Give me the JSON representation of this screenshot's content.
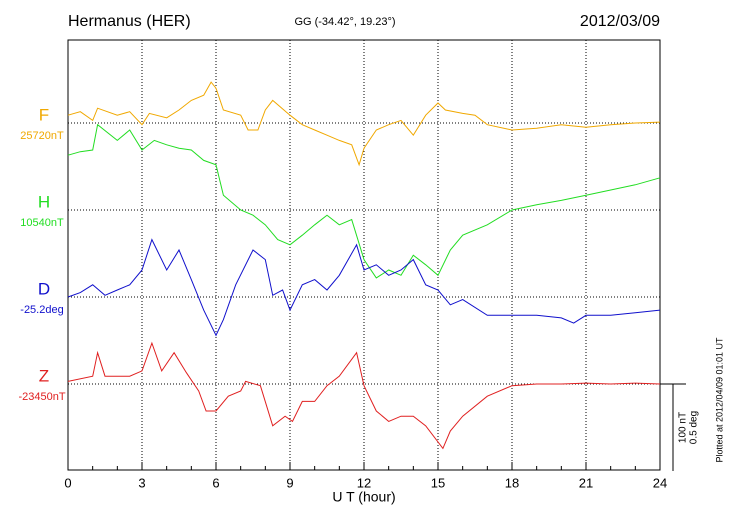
{
  "chart_data": {
    "type": "line",
    "title": "Hermanus (HER)",
    "subtitle": "GG (-34.42°,  19.23°)",
    "date": "2012/03/09",
    "x_label": "U T (hour)",
    "xlim": [
      0,
      24
    ],
    "xticks": [
      0,
      3,
      6,
      9,
      12,
      15,
      18,
      21,
      24
    ],
    "grid": true,
    "scale_bar": {
      "value": 100,
      "label": "100 nT"
    },
    "scale_bar_deg": "0.5 deg",
    "plotted_note": "Plotted at 2012/04/09 01:01  UT",
    "series": [
      {
        "name": "F",
        "baseline_label": "25720nT",
        "color": "#f0a800",
        "x": [
          0,
          0.5,
          1,
          1.2,
          2,
          2.5,
          3,
          3.3,
          4,
          4.5,
          5,
          5.5,
          5.8,
          6,
          6.3,
          7,
          7.3,
          7.7,
          8,
          8.3,
          9,
          9.5,
          10,
          10.5,
          11,
          11.5,
          11.8,
          12,
          12.5,
          13,
          13.5,
          14,
          14.5,
          15,
          15.3,
          16,
          16.5,
          17,
          18,
          19,
          20,
          21,
          22,
          23,
          24
        ],
        "values": [
          9,
          13,
          3,
          17,
          9,
          13,
          -2,
          11,
          6,
          15,
          26,
          32,
          47,
          40,
          15,
          9,
          -8,
          -8,
          15,
          26,
          9,
          -2,
          -8,
          -14,
          -20,
          -25,
          -48,
          -29,
          -8,
          -2,
          3,
          -14,
          9,
          23,
          15,
          11,
          9,
          -2,
          -8,
          -6,
          -2,
          -5,
          -2,
          0,
          1
        ]
      },
      {
        "name": "H",
        "baseline_label": "10540nT",
        "color": "#22dd22",
        "x": [
          0,
          0.5,
          1,
          1.2,
          2,
          2.5,
          3,
          3.5,
          4,
          4.5,
          5,
          5.5,
          6,
          6.3,
          7,
          7.5,
          8,
          8.5,
          9,
          9.5,
          10,
          10.5,
          11,
          11.5,
          12,
          12.5,
          13,
          13.5,
          14,
          14.5,
          15,
          15.5,
          16,
          17,
          18,
          19,
          20,
          21,
          22,
          23,
          24
        ],
        "values": [
          63,
          67,
          69,
          98,
          80,
          92,
          69,
          80,
          75,
          71,
          69,
          57,
          52,
          17,
          0,
          -6,
          -17,
          -34,
          -40,
          -29,
          -17,
          -6,
          -17,
          -11,
          -57,
          -78,
          -69,
          -75,
          -52,
          -63,
          -75,
          -46,
          -29,
          -17,
          0,
          6,
          11,
          17,
          23,
          29,
          37
        ]
      },
      {
        "name": "D",
        "baseline_label": "-25.2deg",
        "color": "#1010cc",
        "x": [
          0,
          0.5,
          1,
          1.5,
          2,
          2.5,
          3,
          3.4,
          4,
          4.5,
          5,
          5.5,
          6,
          6.3,
          6.8,
          7.5,
          8,
          8.3,
          8.7,
          9,
          9.5,
          10,
          10.5,
          11,
          11.7,
          12,
          12.5,
          13,
          13.5,
          14,
          14.5,
          15,
          15.5,
          16,
          17,
          18,
          19,
          20,
          20.5,
          21,
          22,
          23,
          24
        ],
        "values": [
          0,
          5,
          14,
          2,
          8,
          14,
          31,
          66,
          31,
          54,
          20,
          -15,
          -44,
          -26,
          14,
          54,
          43,
          2,
          8,
          -15,
          14,
          20,
          8,
          25,
          60,
          31,
          37,
          25,
          31,
          43,
          14,
          8,
          -9,
          -3,
          -21,
          -21,
          -21,
          -24,
          -30,
          -21,
          -21,
          -18,
          -15
        ]
      },
      {
        "name": "Z",
        "baseline_label": "-23450nT",
        "color": "#e02020",
        "x": [
          0,
          1,
          1.2,
          1.5,
          2,
          2.5,
          3,
          3.4,
          3.8,
          4.3,
          4.8,
          5.3,
          5.6,
          6,
          6.5,
          7,
          7.2,
          7.8,
          8.3,
          8.8,
          9.1,
          9.5,
          10,
          10.5,
          11,
          11.7,
          12,
          12.5,
          13,
          13.5,
          14,
          14.5,
          15.2,
          15.5,
          16,
          17,
          18,
          19,
          20,
          21,
          22,
          23,
          24
        ],
        "values": [
          3,
          9,
          36,
          9,
          9,
          9,
          15,
          47,
          15,
          36,
          13,
          -8,
          -31,
          -31,
          -14,
          -8,
          3,
          -2,
          -48,
          -37,
          -43,
          -20,
          -20,
          -2,
          9,
          36,
          -2,
          -31,
          -43,
          -37,
          -37,
          -48,
          -74,
          -54,
          -37,
          -14,
          -2,
          0,
          0,
          1,
          0,
          1,
          0
        ]
      }
    ]
  }
}
